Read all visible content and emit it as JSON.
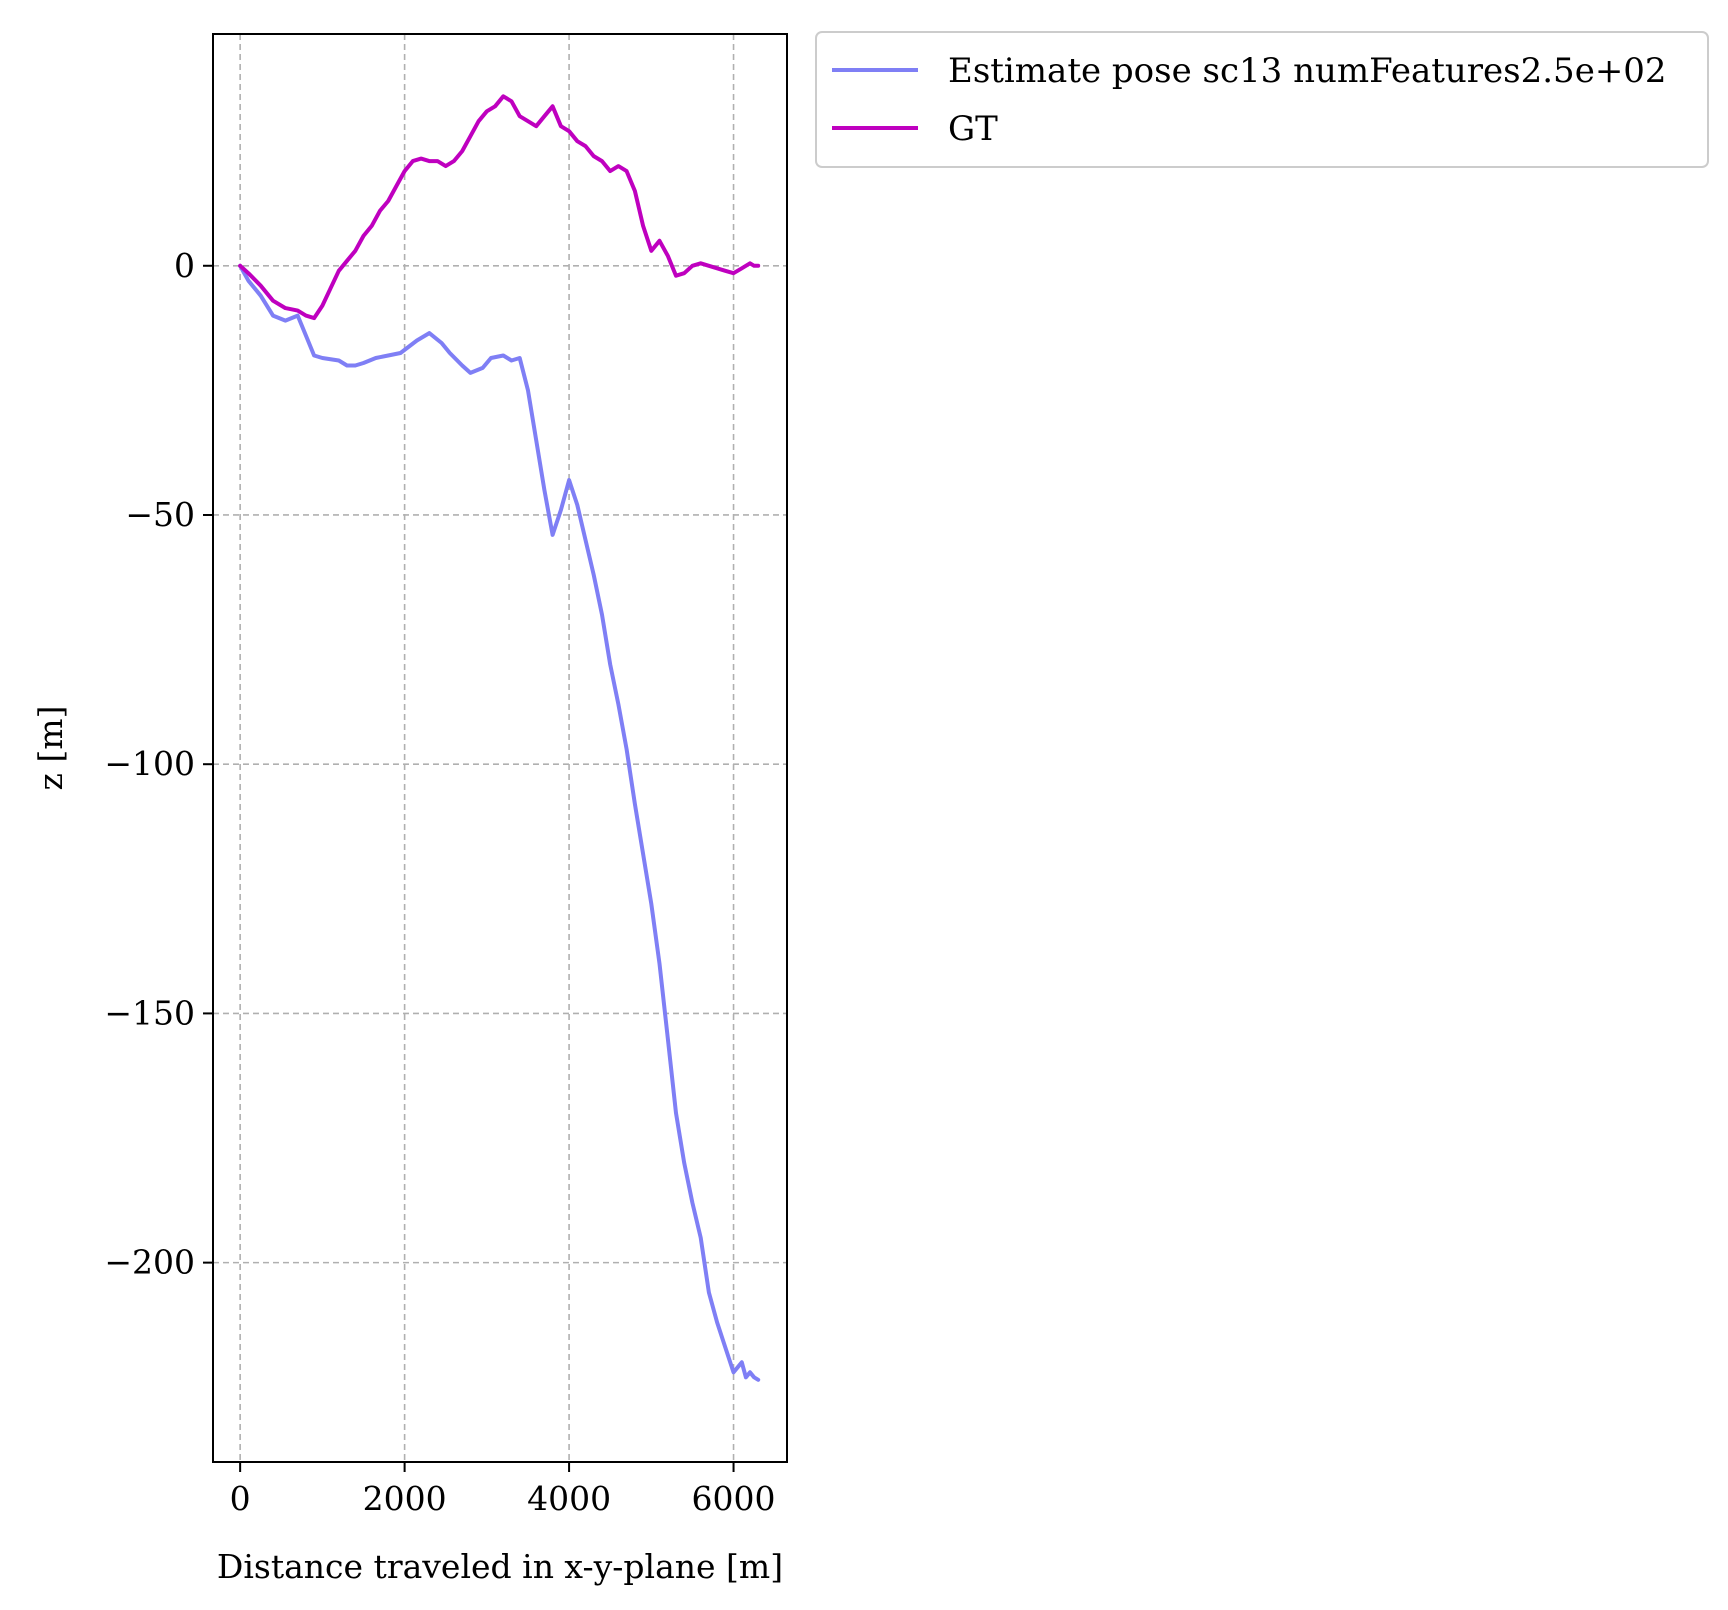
{
  "chart_data": {
    "type": "line",
    "title": "",
    "xlabel": "Distance traveled in x-y-plane [m]",
    "ylabel": "z [m]",
    "xlim": [
      -330,
      6650
    ],
    "ylim": [
      -240,
      46.5
    ],
    "xticks": [
      0,
      2000,
      4000,
      6000
    ],
    "xtick_labels": [
      "0",
      "2000",
      "4000",
      "6000"
    ],
    "yticks": [
      0,
      -50,
      -100,
      -150,
      -200
    ],
    "ytick_labels": [
      "0",
      "−50",
      "−100",
      "−150",
      "−200"
    ],
    "grid": true,
    "legend_position": "outside-top-right",
    "series": [
      {
        "name": "Estimate pose sc13 numFeatures2.5e+02",
        "color": "#7f7ff5",
        "x": [
          0,
          100,
          250,
          400,
          550,
          700,
          800,
          900,
          1000,
          1200,
          1300,
          1400,
          1500,
          1650,
          1800,
          1950,
          2150,
          2300,
          2450,
          2550,
          2700,
          2800,
          2950,
          3050,
          3200,
          3300,
          3400,
          3500,
          3600,
          3700,
          3800,
          3900,
          4000,
          4100,
          4200,
          4300,
          4400,
          4500,
          4600,
          4700,
          4800,
          4900,
          5000,
          5100,
          5200,
          5300,
          5400,
          5500,
          5600,
          5700,
          5800,
          5900,
          6000,
          6100,
          6150,
          6200,
          6250,
          6300
        ],
        "y": [
          0,
          -3,
          -6,
          -10,
          -11,
          -10,
          -14,
          -18,
          -18.5,
          -19,
          -20,
          -20,
          -19.5,
          -18.5,
          -18,
          -17.5,
          -15,
          -13.5,
          -15.5,
          -17.5,
          -20,
          -21.5,
          -20.5,
          -18.5,
          -18,
          -19,
          -18.5,
          -25,
          -35,
          -45,
          -54,
          -49,
          -43,
          -48,
          -55,
          -62,
          -70,
          -80,
          -88,
          -97,
          -108,
          -118,
          -128,
          -140,
          -155,
          -170,
          -180,
          -188,
          -195,
          -206,
          -212,
          -217,
          -222,
          -220,
          -223,
          -222,
          -223,
          -223.5
        ]
      },
      {
        "name": "GT",
        "color": "#bf00bf",
        "x": [
          0,
          100,
          250,
          400,
          550,
          700,
          800,
          900,
          1000,
          1100,
          1200,
          1300,
          1400,
          1500,
          1600,
          1700,
          1800,
          1900,
          2000,
          2100,
          2200,
          2300,
          2400,
          2500,
          2600,
          2700,
          2800,
          2900,
          3000,
          3100,
          3200,
          3300,
          3400,
          3500,
          3600,
          3700,
          3800,
          3900,
          4000,
          4100,
          4200,
          4300,
          4400,
          4500,
          4600,
          4700,
          4800,
          4900,
          5000,
          5100,
          5200,
          5300,
          5400,
          5500,
          5600,
          5700,
          5800,
          5900,
          6000,
          6100,
          6150,
          6200,
          6250,
          6300
        ],
        "y": [
          0,
          -1.5,
          -4,
          -7,
          -8.5,
          -9,
          -10,
          -10.5,
          -8,
          -4.5,
          -1,
          1,
          3,
          6,
          8,
          11,
          13,
          16,
          19,
          21,
          21.5,
          21,
          21,
          20,
          21,
          23,
          26,
          29,
          31,
          32,
          34,
          33,
          30,
          29,
          28,
          30,
          32,
          28,
          27,
          25,
          24,
          22,
          21,
          19,
          20,
          19,
          15,
          8,
          3,
          5,
          2,
          -2,
          -1.5,
          0,
          0.5,
          0,
          -0.5,
          -1,
          -1.5,
          -0.5,
          0,
          0.5,
          0,
          0
        ]
      }
    ]
  }
}
